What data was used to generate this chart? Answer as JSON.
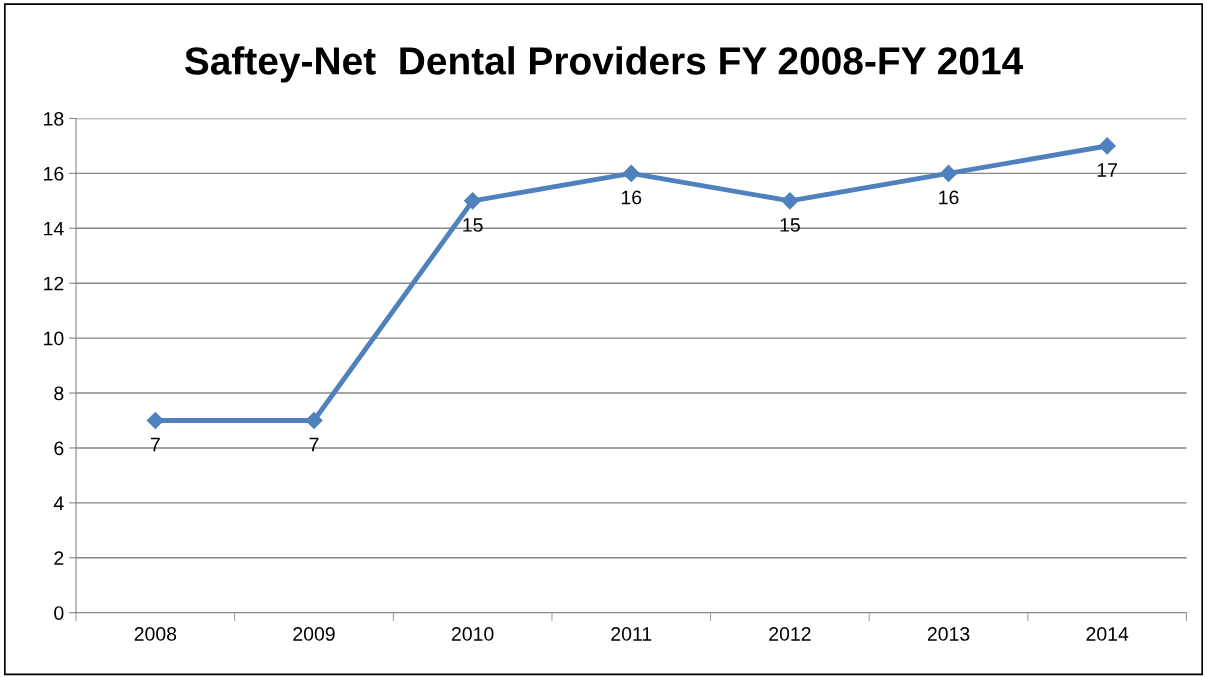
{
  "chart_data": {
    "type": "line",
    "title": "Saftey-Net  Dental Providers FY 2008-FY 2014",
    "categories": [
      "2008",
      "2009",
      "2010",
      "2011",
      "2012",
      "2013",
      "2014"
    ],
    "series": [
      {
        "color": "#4f81bd",
        "values": [
          7,
          7,
          15,
          16,
          15,
          16,
          17
        ]
      }
    ],
    "ylim": [
      0,
      18
    ],
    "yticks": [
      0,
      2,
      4,
      6,
      8,
      10,
      12,
      14,
      16,
      18
    ],
    "grid": "y",
    "marker": "diamond",
    "line_style": "solid",
    "data_labels": true,
    "legend": false
  }
}
